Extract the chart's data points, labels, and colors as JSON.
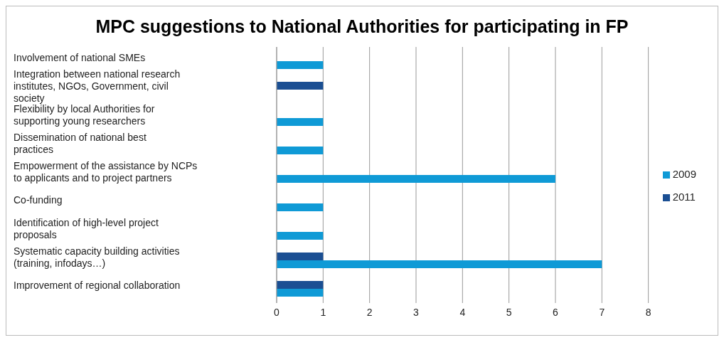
{
  "chart_data": {
    "type": "bar",
    "orientation": "horizontal",
    "title": "MPC suggestions to National Authorities for participating in FP",
    "categories": [
      "Involvement of national SMEs",
      "Integration between national research institutes, NGOs, Government, civil society",
      "Flexibility by local Authorities for supporting young researchers",
      "Dissemination of national best practices",
      "Empowerment of the assistance by NCPs to applicants and to project partners",
      "Co-funding",
      "Identification of high-level project proposals",
      "Systematic capacity building activities (training, infodays…)",
      "Improvement of regional collaboration"
    ],
    "series": [
      {
        "name": "2011",
        "color": "#1b4f93",
        "values": [
          null,
          1,
          null,
          null,
          null,
          null,
          null,
          1,
          1
        ]
      },
      {
        "name": "2009",
        "color": "#0f9ad6",
        "values": [
          1,
          null,
          1,
          1,
          6,
          1,
          1,
          7,
          1
        ]
      }
    ],
    "xlim": [
      0,
      8
    ],
    "xticks": [
      0,
      1,
      2,
      3,
      4,
      5,
      6,
      7,
      8
    ],
    "grid": "x",
    "legend": "right"
  }
}
